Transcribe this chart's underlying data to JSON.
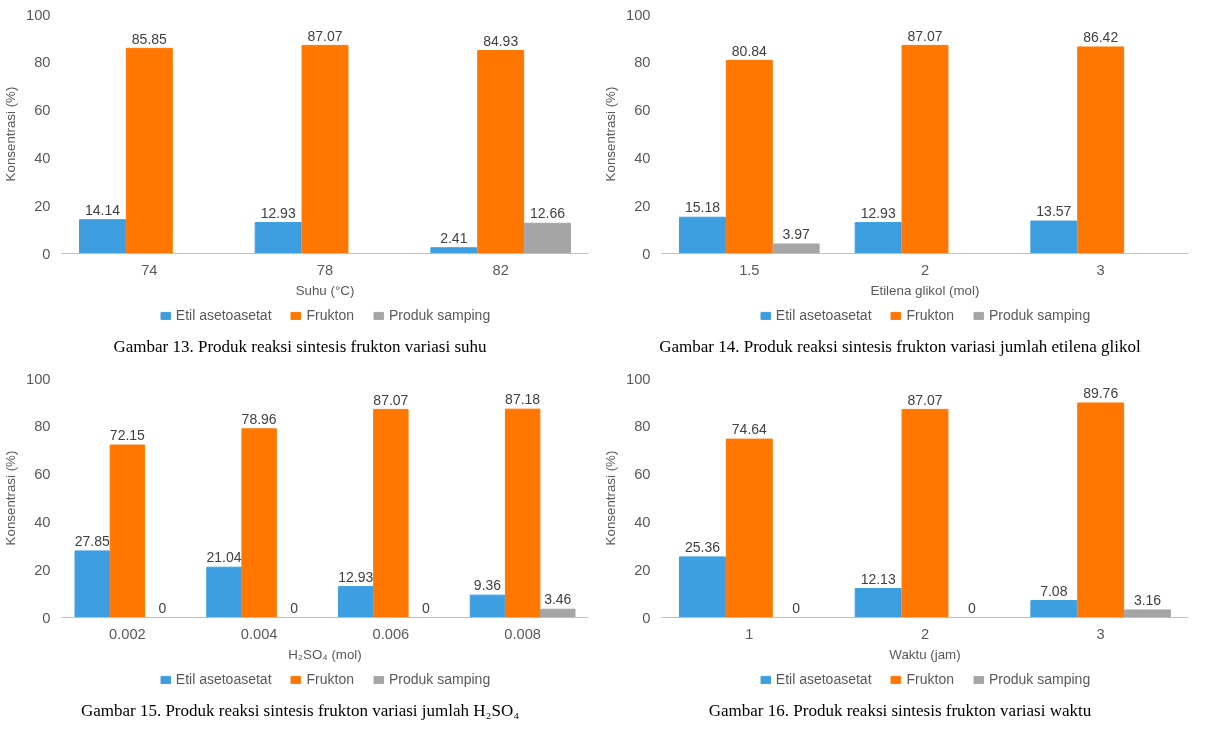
{
  "chart_data": [
    {
      "type": "bar",
      "categories": [
        "74",
        "78",
        "82"
      ],
      "xlabel": "Suhu (°C)",
      "ylabel": "Konsentrasi (%)",
      "ylim": [
        0,
        100
      ],
      "yticks": [
        0,
        20,
        40,
        60,
        80,
        100
      ],
      "grid": false,
      "legend": "bottom",
      "data_labels": true,
      "annotations": [
        "Gambar 13. Produk reaksi sintesis frukton variasi suhu"
      ],
      "series": [
        {
          "name": "Etil asetoasetat",
          "color": "#3d9ee0",
          "values": [
            14.14,
            12.93,
            2.41
          ]
        },
        {
          "name": "Frukton",
          "color": "#ff7700",
          "values": [
            85.85,
            87.07,
            84.93
          ]
        },
        {
          "name": "Produk samping",
          "color": "#a5a5a5",
          "values": [
            null,
            null,
            12.66
          ]
        }
      ]
    },
    {
      "type": "bar",
      "categories": [
        "1.5",
        "2",
        "3"
      ],
      "xlabel": "Etilena glikol (mol)",
      "ylabel": "Konsentrasi (%)",
      "ylim": [
        0,
        100
      ],
      "yticks": [
        0,
        20,
        40,
        60,
        80,
        100
      ],
      "grid": false,
      "legend": "bottom",
      "data_labels": true,
      "annotations": [
        "Gambar 14. Produk reaksi sintesis frukton variasi jumlah etilena glikol"
      ],
      "series": [
        {
          "name": "Etil asetoasetat",
          "color": "#3d9ee0",
          "values": [
            15.18,
            12.93,
            13.57
          ]
        },
        {
          "name": "Frukton",
          "color": "#ff7700",
          "values": [
            80.84,
            87.07,
            86.42
          ]
        },
        {
          "name": "Produk samping",
          "color": "#a5a5a5",
          "values": [
            3.97,
            null,
            null
          ]
        }
      ]
    },
    {
      "type": "bar",
      "categories": [
        "0.002",
        "0.004",
        "0.006",
        "0.008"
      ],
      "xlabel": "H₂SO₄ (mol)",
      "ylabel": "Konsentrasi (%)",
      "ylim": [
        0,
        100
      ],
      "yticks": [
        0,
        20,
        40,
        60,
        80,
        100
      ],
      "grid": false,
      "legend": "bottom",
      "data_labels": true,
      "annotations": [
        "Gambar 15. Produk reaksi sintesis frukton variasi jumlah H₂SO₄"
      ],
      "series": [
        {
          "name": "Etil asetoasetat",
          "color": "#3d9ee0",
          "values": [
            27.85,
            21.04,
            12.93,
            9.36
          ]
        },
        {
          "name": "Frukton",
          "color": "#ff7700",
          "values": [
            72.15,
            78.96,
            87.07,
            87.18
          ]
        },
        {
          "name": "Produk samping",
          "color": "#a5a5a5",
          "values": [
            0,
            0,
            0,
            3.46
          ]
        }
      ]
    },
    {
      "type": "bar",
      "categories": [
        "1",
        "2",
        "3"
      ],
      "xlabel": "Waktu (jam)",
      "ylabel": "Konsentrasi (%)",
      "ylim": [
        0,
        100
      ],
      "yticks": [
        0,
        20,
        40,
        60,
        80,
        100
      ],
      "grid": false,
      "legend": "bottom",
      "data_labels": true,
      "annotations": [
        "Gambar 16. Produk reaksi sintesis frukton variasi waktu"
      ],
      "series": [
        {
          "name": "Etil asetoasetat",
          "color": "#3d9ee0",
          "values": [
            25.36,
            12.13,
            7.08
          ]
        },
        {
          "name": "Frukton",
          "color": "#ff7700",
          "values": [
            74.64,
            87.07,
            89.76
          ]
        },
        {
          "name": "Produk samping",
          "color": "#a5a5a5",
          "values": [
            0,
            0,
            3.16
          ]
        }
      ]
    }
  ]
}
